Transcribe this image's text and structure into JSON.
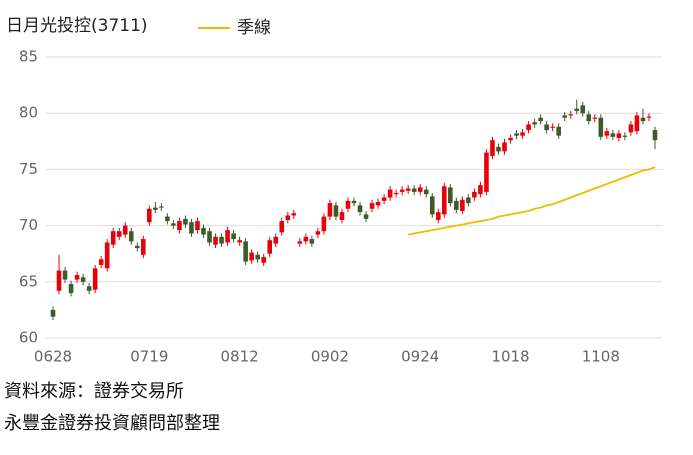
{
  "chart_data": {
    "type": "candlestick",
    "title": "日月光投控(3711)",
    "categories": [
      "0628",
      null,
      null,
      null,
      null,
      null,
      null,
      null,
      null,
      null,
      null,
      null,
      null,
      null,
      null,
      null,
      "0719",
      null,
      null,
      null,
      null,
      null,
      null,
      null,
      null,
      null,
      null,
      null,
      null,
      null,
      null,
      "0812",
      null,
      null,
      null,
      null,
      null,
      null,
      null,
      null,
      null,
      null,
      null,
      null,
      null,
      null,
      "0902",
      null,
      null,
      null,
      null,
      null,
      null,
      null,
      null,
      null,
      null,
      null,
      null,
      null,
      null,
      "0924",
      null,
      null,
      null,
      null,
      null,
      null,
      null,
      null,
      null,
      null,
      null,
      null,
      null,
      null,
      "1018",
      null,
      null,
      null,
      null,
      null,
      null,
      null,
      null,
      null,
      null,
      null,
      null,
      null,
      null,
      "1108",
      null,
      null,
      null,
      null,
      null,
      null,
      null,
      null,
      null
    ],
    "open": [
      62.5,
      64.2,
      66.0,
      64.8,
      65.2,
      65.4,
      64.6,
      64.3,
      66.5,
      66.2,
      68.3,
      69.0,
      69.2,
      69.5,
      68.2,
      67.4,
      70.3,
      71.6,
      71.7,
      70.8,
      70.2,
      69.6,
      70.6,
      70.3,
      69.6,
      69.8,
      69.5,
      68.3,
      69.0,
      68.5,
      69.3,
      68.5,
      68.6,
      66.9,
      67.4,
      66.7,
      67.5,
      68.4,
      69.4,
      70.5,
      70.9,
      68.4,
      68.6,
      68.8,
      69.2,
      69.5,
      70.8,
      71.8,
      70.5,
      71.5,
      72.2,
      71.8,
      71.0,
      71.5,
      71.8,
      72.2,
      72.5,
      72.8,
      73.0,
      73.1,
      73.3,
      73.0,
      73.2,
      72.6,
      70.5,
      71.0,
      73.4,
      72.2,
      71.3,
      72.5,
      72.5,
      72.8,
      73.0,
      76.2,
      77.0,
      76.6,
      77.6,
      78.2,
      78.0,
      78.5,
      79.2,
      79.6,
      79.0,
      78.7,
      78.8,
      79.8,
      79.8,
      80.4,
      80.7,
      79.9,
      79.5,
      79.6,
      78.0,
      78.2,
      77.8,
      78.0,
      78.3,
      78.4,
      79.6,
      79.6,
      78.5
    ],
    "high": [
      62.8,
      67.4,
      66.3,
      65.1,
      65.9,
      65.7,
      64.9,
      66.5,
      67.3,
      68.8,
      69.8,
      69.8,
      70.3,
      69.8,
      68.5,
      69.1,
      71.8,
      72.1,
      72.0,
      71.1,
      70.5,
      70.7,
      70.9,
      70.6,
      70.7,
      70.1,
      69.8,
      69.3,
      69.3,
      69.9,
      69.6,
      69.0,
      68.9,
      67.9,
      67.7,
      67.5,
      69.0,
      69.3,
      70.7,
      71.2,
      71.4,
      68.9,
      69.3,
      69.1,
      69.8,
      71.1,
      72.3,
      72.1,
      71.5,
      72.5,
      72.5,
      72.1,
      71.3,
      72.3,
      72.4,
      72.8,
      73.5,
      73.2,
      73.5,
      73.6,
      73.6,
      73.7,
      73.5,
      72.9,
      71.5,
      73.8,
      73.7,
      72.5,
      72.6,
      72.8,
      73.3,
      73.9,
      76.8,
      77.9,
      77.3,
      77.7,
      78.1,
      78.5,
      78.6,
      79.3,
      79.5,
      79.9,
      79.3,
      79.1,
      79.1,
      80.1,
      80.2,
      81.2,
      81.0,
      80.2,
      79.9,
      79.9,
      78.7,
      78.5,
      78.5,
      78.3,
      79.3,
      80.1,
      80.4,
      80.0,
      78.8
    ],
    "low": [
      61.6,
      63.9,
      64.9,
      63.7,
      64.9,
      64.7,
      63.9,
      64.0,
      66.2,
      65.9,
      68.0,
      68.7,
      68.9,
      68.3,
      67.7,
      67.1,
      70.0,
      71.1,
      71.3,
      70.1,
      69.7,
      69.3,
      69.8,
      69.0,
      69.3,
      68.9,
      68.2,
      68.0,
      68.1,
      68.2,
      68.5,
      68.2,
      66.5,
      66.6,
      66.7,
      66.4,
      67.2,
      68.1,
      69.1,
      70.2,
      70.6,
      68.1,
      68.3,
      68.1,
      68.9,
      69.2,
      70.5,
      70.5,
      70.2,
      71.2,
      71.7,
      70.9,
      70.3,
      71.2,
      71.5,
      71.9,
      72.2,
      72.5,
      72.7,
      72.8,
      72.7,
      72.7,
      72.5,
      70.7,
      70.2,
      70.7,
      71.7,
      71.1,
      71.0,
      71.7,
      72.2,
      72.5,
      72.7,
      75.9,
      76.3,
      76.3,
      77.3,
      77.7,
      77.7,
      78.2,
      78.7,
      79.0,
      78.2,
      78.4,
      77.7,
      79.3,
      79.5,
      79.9,
      79.7,
      79.0,
      79.2,
      77.6,
      77.7,
      77.6,
      77.5,
      77.6,
      78.0,
      78.1,
      79.0,
      79.3,
      76.8
    ],
    "close": [
      61.9,
      66.0,
      65.2,
      64.0,
      65.6,
      65.0,
      64.2,
      66.2,
      67.0,
      68.5,
      69.5,
      69.5,
      70.0,
      68.6,
      68.0,
      68.8,
      71.5,
      71.4,
      71.6,
      70.4,
      70.0,
      70.4,
      70.1,
      69.3,
      70.4,
      69.2,
      68.5,
      69.0,
      68.4,
      69.6,
      68.8,
      68.7,
      66.8,
      67.6,
      67.0,
      67.2,
      68.7,
      69.0,
      70.4,
      70.9,
      71.1,
      68.6,
      69.0,
      68.4,
      69.5,
      70.8,
      72.0,
      70.8,
      71.2,
      72.2,
      72.0,
      71.2,
      70.6,
      72.0,
      72.1,
      72.5,
      73.2,
      72.9,
      73.2,
      73.3,
      73.0,
      73.4,
      72.8,
      71.0,
      71.2,
      73.5,
      72.0,
      71.4,
      72.3,
      72.0,
      73.0,
      73.6,
      76.5,
      77.6,
      76.6,
      77.4,
      77.8,
      78.0,
      78.3,
      79.0,
      79.0,
      79.3,
      78.5,
      78.8,
      78.0,
      79.6,
      79.9,
      80.2,
      80.0,
      79.3,
      79.6,
      77.9,
      78.4,
      77.9,
      78.2,
      77.9,
      79.0,
      79.8,
      79.3,
      79.7,
      77.6
    ],
    "up_color": "#e8000b",
    "down_color": "#3d5a2a",
    "series": [
      {
        "name": "季線",
        "color": "#f5b800",
        "values": [
          null,
          null,
          null,
          null,
          null,
          null,
          null,
          null,
          null,
          null,
          null,
          null,
          null,
          null,
          null,
          null,
          null,
          null,
          null,
          null,
          null,
          null,
          null,
          null,
          null,
          null,
          null,
          null,
          null,
          null,
          null,
          null,
          null,
          null,
          null,
          null,
          null,
          null,
          null,
          null,
          null,
          null,
          null,
          null,
          null,
          null,
          null,
          null,
          null,
          null,
          null,
          null,
          null,
          null,
          null,
          null,
          null,
          null,
          null,
          69.2,
          69.3,
          69.4,
          69.5,
          69.6,
          69.7,
          69.8,
          69.9,
          70.0,
          70.1,
          70.2,
          70.3,
          70.4,
          70.5,
          70.6,
          70.8,
          70.9,
          71.0,
          71.1,
          71.2,
          71.3,
          71.5,
          71.6,
          71.8,
          71.9,
          72.1,
          72.3,
          72.5,
          72.7,
          72.9,
          73.1,
          73.3,
          73.5,
          73.7,
          73.9,
          74.1,
          74.3,
          74.5,
          74.7,
          74.9,
          75.0,
          75.2
        ]
      }
    ],
    "ylim": [
      60,
      85
    ],
    "yticks": [
      60,
      65,
      70,
      75,
      80,
      85
    ],
    "grid": true
  },
  "notes": [
    "資料來源：證券交易所",
    "永豐金證券投資顧問部整理"
  ]
}
